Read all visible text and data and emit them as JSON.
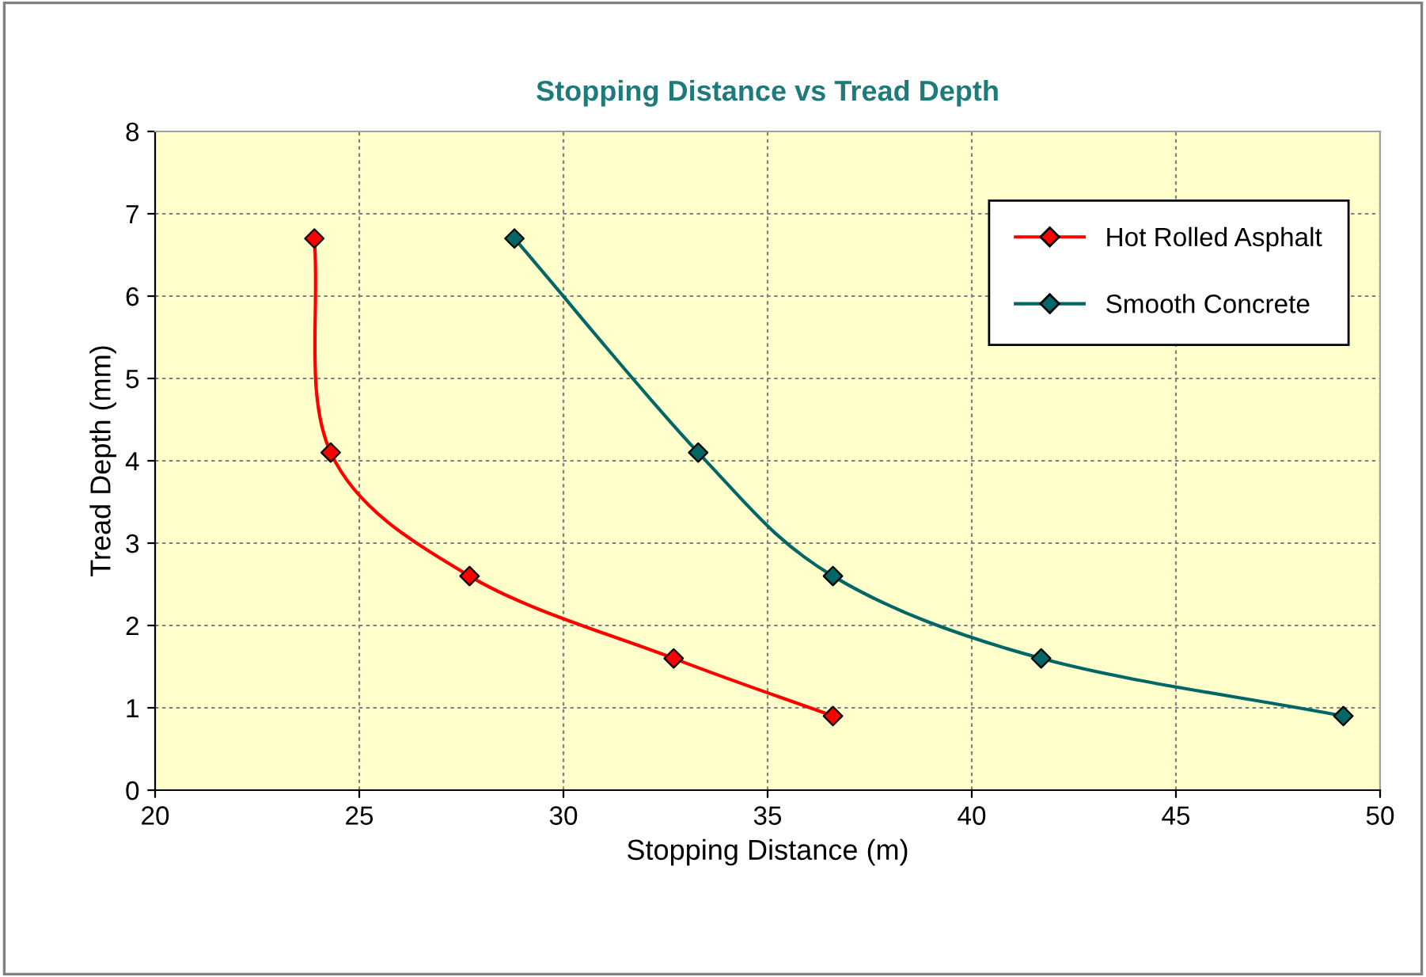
{
  "chart_data": {
    "type": "line",
    "title": "Stopping Distance vs Tread Depth",
    "xlabel": "Stopping Distance (m)",
    "ylabel": "Tread Depth (mm)",
    "series": [
      {
        "name": "Hot Rolled Asphalt",
        "color": "#ff0000",
        "x": [
          23.9,
          24.3,
          27.7,
          32.7,
          36.6
        ],
        "values": [
          6.7,
          4.1,
          2.6,
          1.6,
          0.9
        ]
      },
      {
        "name": "Smooth Concrete",
        "color": "#006666",
        "x": [
          28.8,
          33.3,
          36.6,
          41.7,
          49.1
        ],
        "values": [
          6.7,
          4.1,
          2.6,
          1.6,
          0.9
        ]
      }
    ],
    "xlim": [
      20,
      50
    ],
    "xticks": [
      20,
      25,
      30,
      35,
      40,
      45,
      50
    ],
    "ylim": [
      0,
      8
    ],
    "yticks": [
      0,
      1,
      2,
      3,
      4,
      5,
      6,
      7,
      8
    ],
    "grid": true,
    "legend": "top right",
    "marker": "diamond",
    "line_style": "solid"
  }
}
